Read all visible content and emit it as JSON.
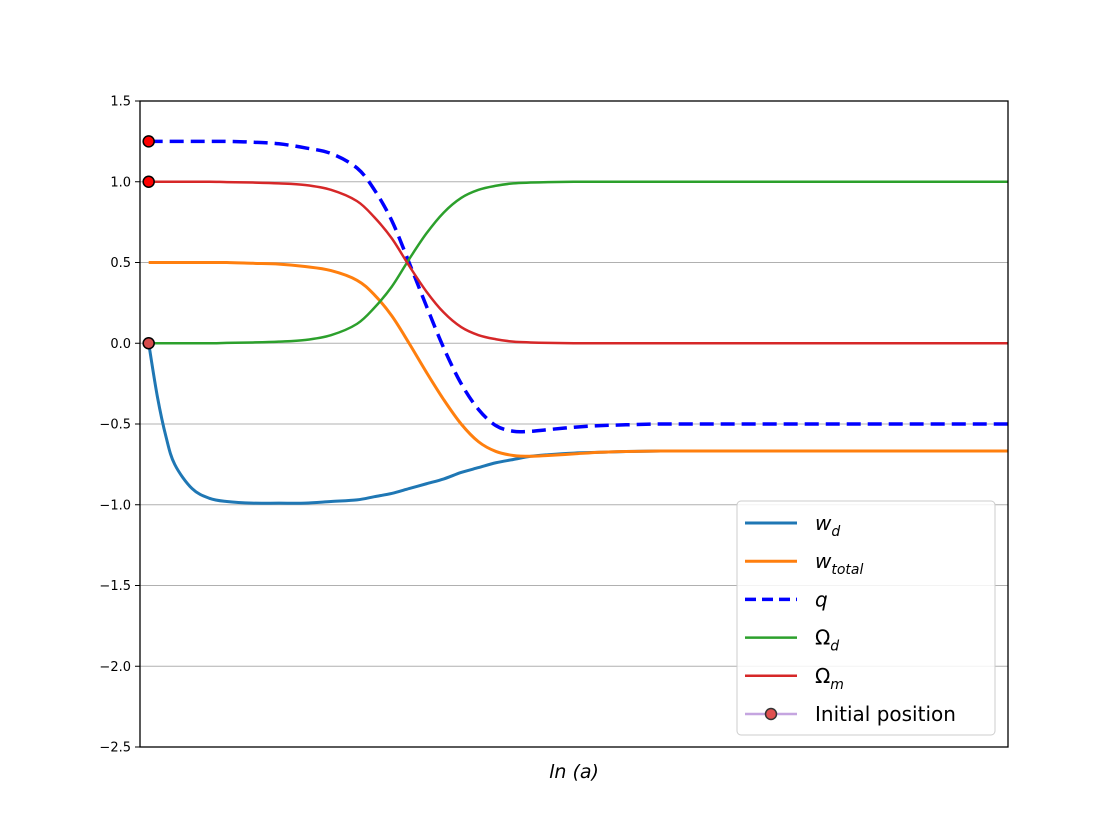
{
  "chart_data": {
    "type": "line",
    "title": "",
    "xlabel": "ln (a)",
    "ylabel": "",
    "xlim": [
      0,
      10
    ],
    "ylim": [
      -2.5,
      1.5
    ],
    "yticks": [
      "−2.5",
      "−2.0",
      "−1.5",
      "−1.0",
      "−0.5",
      "0.0",
      "0.5",
      "1.0",
      "1.5"
    ],
    "ytick_values": [
      -2.5,
      -2.0,
      -1.5,
      -1.0,
      -0.5,
      0.0,
      0.5,
      1.0,
      1.5
    ],
    "grid": "horizontal",
    "legend_position": "bottom-right",
    "x": [
      0.1,
      0.2,
      0.3,
      0.4,
      0.6,
      0.8,
      1.0,
      1.3,
      1.6,
      1.9,
      2.2,
      2.5,
      2.7,
      2.9,
      3.1,
      3.3,
      3.5,
      3.7,
      3.9,
      4.1,
      4.3,
      4.5,
      4.7,
      5.0,
      5.3,
      5.6,
      6.0,
      6.5,
      7.0,
      8.0,
      9.0,
      10.0
    ],
    "series": [
      {
        "name": "w_d",
        "name_base": "w",
        "name_sub": "d",
        "color": "#1f77b4",
        "width": 3,
        "dash": "",
        "values": [
          0.0,
          -0.33,
          -0.58,
          -0.75,
          -0.9,
          -0.96,
          -0.98,
          -0.99,
          -0.99,
          -0.99,
          -0.98,
          -0.97,
          -0.95,
          -0.93,
          -0.9,
          -0.87,
          -0.84,
          -0.8,
          -0.77,
          -0.74,
          -0.72,
          -0.7,
          -0.69,
          -0.68,
          -0.675,
          -0.67,
          -0.667,
          -0.667,
          -0.667,
          -0.667,
          -0.667,
          -0.667
        ]
      },
      {
        "name": "w_total",
        "name_base": "w",
        "name_sub": "total",
        "color": "#ff7f0e",
        "width": 3,
        "dash": "",
        "values": [
          0.5,
          0.5,
          0.5,
          0.5,
          0.5,
          0.5,
          0.5,
          0.495,
          0.49,
          0.475,
          0.45,
          0.39,
          0.3,
          0.17,
          0.0,
          -0.18,
          -0.35,
          -0.5,
          -0.61,
          -0.67,
          -0.695,
          -0.7,
          -0.695,
          -0.685,
          -0.675,
          -0.67,
          -0.667,
          -0.667,
          -0.667,
          -0.667,
          -0.667,
          -0.667
        ]
      },
      {
        "name": "q",
        "name_base": "q",
        "name_sub": "",
        "color": "#0000ff",
        "width": 3.5,
        "dash": "14,7",
        "values": [
          1.25,
          1.25,
          1.25,
          1.25,
          1.25,
          1.25,
          1.25,
          1.245,
          1.235,
          1.21,
          1.175,
          1.085,
          0.95,
          0.76,
          0.5,
          0.23,
          -0.03,
          -0.25,
          -0.41,
          -0.51,
          -0.545,
          -0.545,
          -0.535,
          -0.52,
          -0.51,
          -0.505,
          -0.5,
          -0.5,
          -0.5,
          -0.5,
          -0.5,
          -0.5
        ]
      },
      {
        "name": "Ω_d",
        "name_base": "Ω",
        "name_sub": "d",
        "color": "#2ca02c",
        "width": 2.5,
        "dash": "",
        "values": [
          0.0,
          0.0,
          0.0,
          0.0,
          0.0,
          0.0,
          0.002,
          0.005,
          0.01,
          0.02,
          0.05,
          0.12,
          0.22,
          0.35,
          0.52,
          0.68,
          0.81,
          0.9,
          0.95,
          0.975,
          0.99,
          0.995,
          0.998,
          1.0,
          1.0,
          1.0,
          1.0,
          1.0,
          1.0,
          1.0,
          1.0,
          1.0
        ]
      },
      {
        "name": "Ω_m",
        "name_base": "Ω",
        "name_sub": "m",
        "color": "#d62728",
        "width": 2.5,
        "dash": "",
        "values": [
          1.0,
          1.0,
          1.0,
          1.0,
          1.0,
          1.0,
          0.998,
          0.995,
          0.99,
          0.98,
          0.95,
          0.88,
          0.78,
          0.65,
          0.48,
          0.32,
          0.19,
          0.1,
          0.05,
          0.025,
          0.01,
          0.005,
          0.002,
          0.0,
          0.0,
          0.0,
          0.0,
          0.0,
          0.0,
          0.0,
          0.0,
          0.0
        ]
      }
    ],
    "initial_position": {
      "name": "Initial position",
      "x": 0.1,
      "points": [
        {
          "y": 1.25,
          "color": "#ff0000"
        },
        {
          "y": 1.0,
          "color": "#ff0000"
        },
        {
          "y": 0.0,
          "color": "#d64b4b"
        }
      ],
      "line_color": "#c5a5e0",
      "marker_color": "#e05050"
    }
  }
}
